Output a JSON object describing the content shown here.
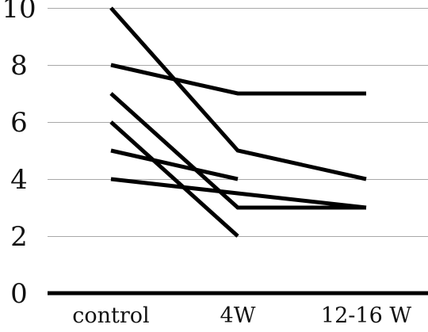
{
  "chart_data": {
    "type": "line",
    "categories": [
      "control",
      "4W",
      "12-16 W"
    ],
    "ylim": [
      0,
      10
    ],
    "yticks": [
      0,
      2,
      4,
      6,
      8,
      10
    ],
    "grid": true,
    "legend": "none",
    "line_color": "#000000",
    "grid_color": "#a8a8a8",
    "series": [
      {
        "values": [
          10,
          5,
          4
        ]
      },
      {
        "values": [
          8,
          7,
          7
        ]
      },
      {
        "values": [
          7,
          3,
          3
        ]
      },
      {
        "values": [
          6,
          2,
          null
        ]
      },
      {
        "values": [
          5,
          4,
          null
        ]
      },
      {
        "values": [
          4,
          3.5,
          3
        ]
      }
    ]
  }
}
